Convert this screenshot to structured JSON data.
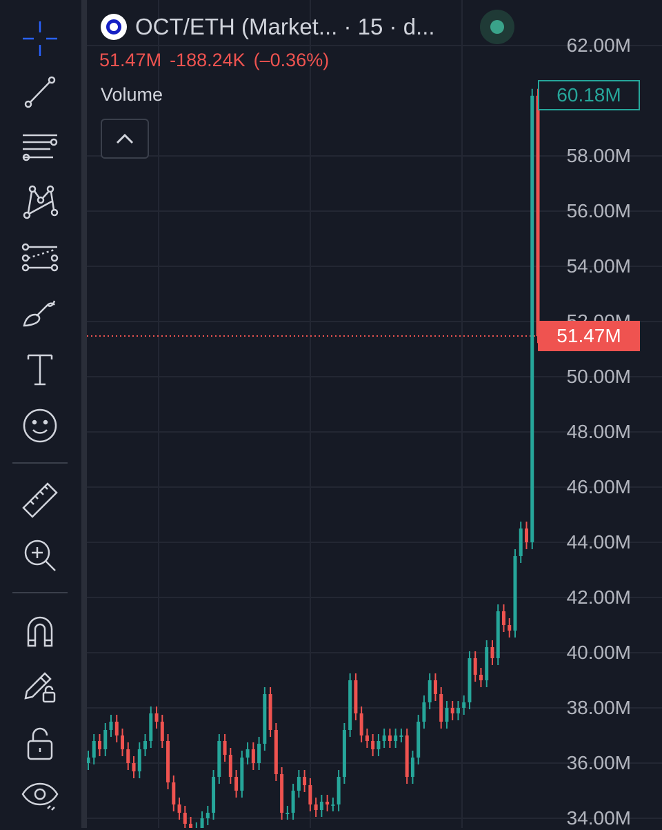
{
  "header": {
    "symbol_title": "OCT/ETH (Market...  · 15 · d...",
    "last_value": "51.47M",
    "change": "-188.24K",
    "change_pct": "(–0.36%)"
  },
  "indicator": {
    "label": "Volume"
  },
  "badges": {
    "high": "60.18M",
    "last": "51.47M"
  },
  "y_axis": {
    "labels": [
      "62.00M",
      "58.00M",
      "56.00M",
      "54.00M",
      "52.00M",
      "50.00M",
      "48.00M",
      "46.00M",
      "44.00M",
      "42.00M",
      "40.00M",
      "38.00M",
      "36.00M",
      "34.00M"
    ]
  },
  "toolbar": {
    "tools": [
      "crosshair-icon",
      "trend-line-icon",
      "fib-retracement-icon",
      "pattern-icon",
      "prediction-icon",
      "brush-icon",
      "text-icon",
      "emoji-icon",
      "ruler-icon",
      "zoom-in-icon",
      "magnet-icon",
      "lock-drawing-icon",
      "lock-icon",
      "eye-icon"
    ]
  },
  "colors": {
    "up": "#26a69a",
    "down": "#ef5350",
    "background": "#161a25",
    "grid": "#232733",
    "accent": "#2962ff"
  },
  "chart_data": {
    "type": "candlestick",
    "title": "",
    "ylabel": "",
    "ylim": [
      33.8,
      62.6
    ],
    "last_value": 51.47,
    "max_value": 60.18,
    "series": [
      {
        "values": [
          36.2,
          36.8,
          36.5,
          37.2,
          37.5,
          37.0,
          36.5,
          36.0,
          35.7,
          36.5,
          36.8,
          37.8,
          37.5,
          36.8,
          35.3,
          34.5,
          34.2,
          33.8,
          33.6,
          33.6,
          34.0,
          34.2,
          35.5,
          36.8,
          36.3,
          35.5,
          35.0,
          36.2,
          36.5,
          36.0,
          36.7,
          38.5,
          37.2,
          35.6,
          34.2,
          34.2,
          35.0,
          35.5,
          35.2,
          34.5,
          34.3,
          34.6,
          34.5,
          34.5,
          35.5,
          37.2,
          39.0,
          37.8,
          37.0,
          36.8,
          36.5,
          36.8,
          37.0,
          36.8,
          37.0,
          37.0,
          35.5,
          36.2,
          37.5,
          38.2,
          39.0,
          38.5,
          37.5,
          38.0,
          37.8,
          38.0,
          38.2,
          39.8,
          39.2,
          39.0,
          40.2,
          39.8,
          41.5,
          41.0,
          40.8,
          43.5,
          44.5,
          44.0,
          60.18,
          51.47
        ]
      }
    ]
  }
}
